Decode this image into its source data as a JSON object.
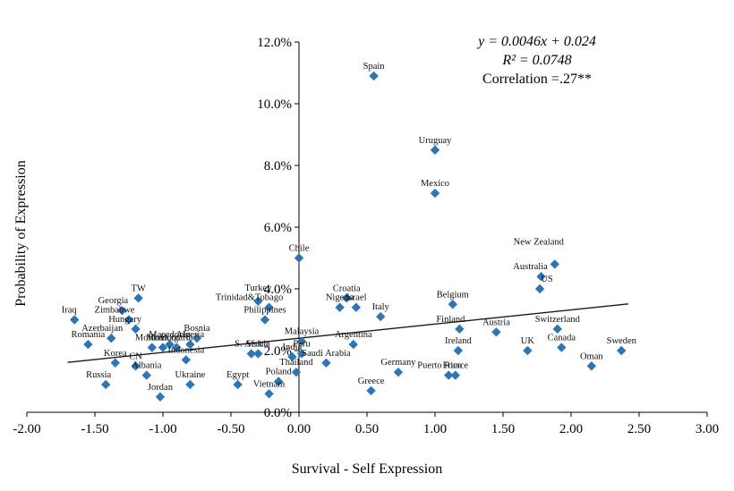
{
  "chart_data": {
    "type": "scatter",
    "title": "",
    "xlabel": "Survival - Self Expression",
    "ylabel": "Probability of Expression",
    "xlim": [
      -2.0,
      3.0
    ],
    "ylim": [
      0,
      0.12
    ],
    "grid": false,
    "legend": "none",
    "x_ticks": [
      "-2.00",
      "-1.50",
      "-1.00",
      "-0.50",
      "0.00",
      "0.50",
      "1.00",
      "1.50",
      "2.00",
      "2.50",
      "3.00"
    ],
    "y_ticks": [
      "0.0%",
      "2.0%",
      "4.0%",
      "6.0%",
      "8.0%",
      "10.0%",
      "12.0%"
    ],
    "annotation": {
      "line1": "y = 0.0046x + 0.024",
      "line2": "R² = 0.0748",
      "line3": "Correlation =.27**"
    },
    "trend": {
      "slope": 0.0046,
      "intercept": 0.024,
      "x_start": -1.7,
      "x_end": 2.42
    },
    "marker_color": "#2e75b6",
    "points": [
      {
        "label": "Spain",
        "x": 0.55,
        "y": 0.109
      },
      {
        "label": "Uruguay",
        "x": 1.0,
        "y": 0.085
      },
      {
        "label": "Mexico",
        "x": 1.0,
        "y": 0.071
      },
      {
        "label": "Chile",
        "x": 0.0,
        "y": 0.05
      },
      {
        "label": "New Zealand",
        "x": 1.88,
        "y": 0.048,
        "dy": -14,
        "dx": -18
      },
      {
        "label": "Australia",
        "x": 1.78,
        "y": 0.044,
        "dx": -12
      },
      {
        "label": "US",
        "x": 1.77,
        "y": 0.04,
        "dx": 8
      },
      {
        "label": "TW",
        "x": -1.18,
        "y": 0.037
      },
      {
        "label": "Georgia",
        "x": -1.3,
        "y": 0.033,
        "dx": -10
      },
      {
        "label": "Zimbabwe",
        "x": -1.25,
        "y": 0.03,
        "dx": -16
      },
      {
        "label": "Iraq",
        "x": -1.65,
        "y": 0.03,
        "dx": -6
      },
      {
        "label": "Hungary",
        "x": -1.2,
        "y": 0.027,
        "dx": -12
      },
      {
        "label": "Turkey",
        "x": -0.3,
        "y": 0.036,
        "dy": -4
      },
      {
        "label": "Trinidad&Tobago",
        "x": -0.22,
        "y": 0.034,
        "dx": -22
      },
      {
        "label": "Croatia",
        "x": 0.35,
        "y": 0.037
      },
      {
        "label": "Nigeria",
        "x": 0.3,
        "y": 0.034
      },
      {
        "label": "Israel",
        "x": 0.42,
        "y": 0.034
      },
      {
        "label": "Italy",
        "x": 0.6,
        "y": 0.031
      },
      {
        "label": "Belgium",
        "x": 1.13,
        "y": 0.035
      },
      {
        "label": "Argentina",
        "x": 0.4,
        "y": 0.022
      },
      {
        "label": "Finland",
        "x": 1.18,
        "y": 0.027,
        "dx": -10
      },
      {
        "label": "Austria",
        "x": 1.45,
        "y": 0.026
      },
      {
        "label": "Switzerland",
        "x": 1.9,
        "y": 0.027
      },
      {
        "label": "UK",
        "x": 1.68,
        "y": 0.02
      },
      {
        "label": "Canada",
        "x": 1.93,
        "y": 0.021
      },
      {
        "label": "Sweden",
        "x": 2.37,
        "y": 0.02
      },
      {
        "label": "Oman",
        "x": 2.15,
        "y": 0.015
      },
      {
        "label": "Ireland",
        "x": 1.17,
        "y": 0.02
      },
      {
        "label": "France",
        "x": 1.15,
        "y": 0.012
      },
      {
        "label": "Puerto Rico",
        "x": 1.1,
        "y": 0.012,
        "dx": -10
      },
      {
        "label": "Germany",
        "x": 0.73,
        "y": 0.013
      },
      {
        "label": "Greece",
        "x": 0.53,
        "y": 0.007
      },
      {
        "label": "Philippines",
        "x": -0.25,
        "y": 0.03
      },
      {
        "label": "Malaysia",
        "x": 0.02,
        "y": 0.023
      },
      {
        "label": "Peru",
        "x": 0.02,
        "y": 0.019
      },
      {
        "label": "Saudi Arabia",
        "x": 0.2,
        "y": 0.016
      },
      {
        "label": "Thailand",
        "x": -0.02,
        "y": 0.013
      },
      {
        "label": "India",
        "x": -0.05,
        "y": 0.018
      },
      {
        "label": "Bosnia",
        "x": -0.75,
        "y": 0.024
      },
      {
        "label": "Romania",
        "x": -1.55,
        "y": 0.022
      },
      {
        "label": "Azerbaijan",
        "x": -1.38,
        "y": 0.024,
        "dx": -10
      },
      {
        "label": "Korea",
        "x": -1.35,
        "y": 0.016
      },
      {
        "label": "Russia",
        "x": -1.42,
        "y": 0.009,
        "dx": -8
      },
      {
        "label": "Albania",
        "x": -1.12,
        "y": 0.012
      },
      {
        "label": "CN",
        "x": -1.2,
        "y": 0.015
      },
      {
        "label": "Jordan",
        "x": -1.02,
        "y": 0.005
      },
      {
        "label": "Ukraine",
        "x": -0.8,
        "y": 0.009
      },
      {
        "label": "Indonesia",
        "x": -0.83,
        "y": 0.017
      },
      {
        "label": "Egypt",
        "x": -0.45,
        "y": 0.009
      },
      {
        "label": "Poland",
        "x": -0.15,
        "y": 0.01
      },
      {
        "label": "Vietnam",
        "x": -0.22,
        "y": 0.006
      },
      {
        "label": "Moldova",
        "x": -1.08,
        "y": 0.021
      },
      {
        "label": "Morocco",
        "x": -1.0,
        "y": 0.021
      },
      {
        "label": "Macedonia",
        "x": -0.95,
        "y": 0.022
      },
      {
        "label": "Bulgaria",
        "x": -0.9,
        "y": 0.021
      },
      {
        "label": "Algeria",
        "x": -0.8,
        "y": 0.022
      },
      {
        "label": "Serbia",
        "x": -0.3,
        "y": 0.019
      },
      {
        "label": "S. Africa",
        "x": -0.35,
        "y": 0.019
      }
    ]
  }
}
